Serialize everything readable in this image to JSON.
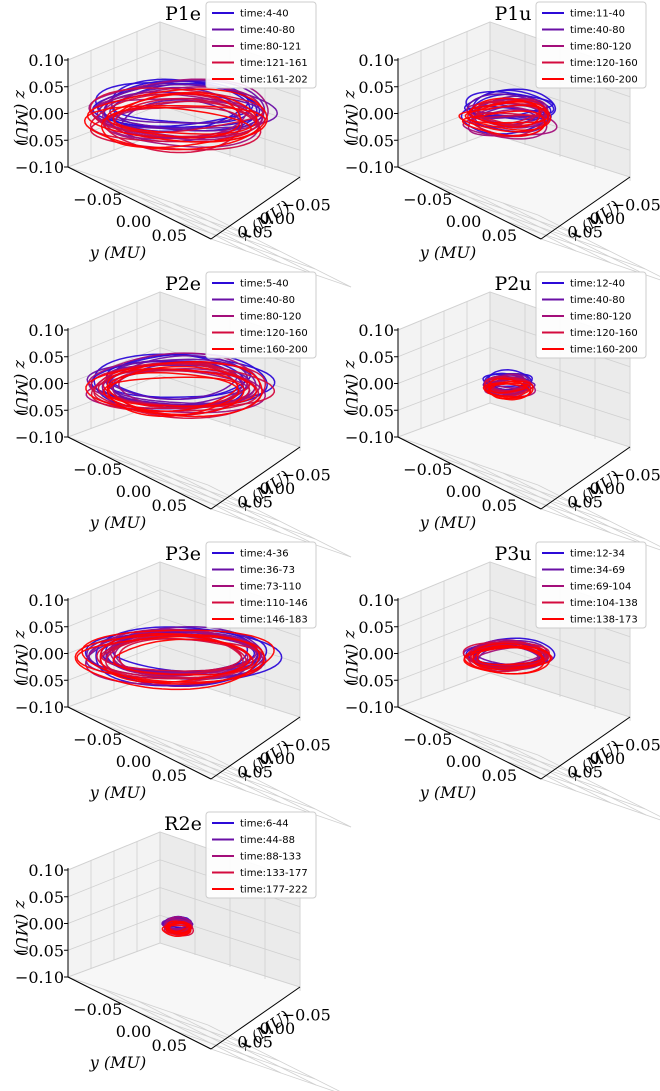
{
  "colors": [
    "#2c0ad8",
    "#6a0fa6",
    "#a30e7a",
    "#d40b3e",
    "#ff0000"
  ],
  "panel_labels": {
    "zlabel": "z (MU)",
    "ylabel": "y (MU)",
    "xlabel": "x (MU)",
    "zticks": [
      "0.10",
      "0.05",
      "0.00",
      "−0.05",
      "−0.10"
    ],
    "yticks": [
      "−0.05",
      "0.00",
      "0.05"
    ],
    "xticks": [
      "−0.05",
      "0.00",
      "0.05"
    ]
  },
  "chart_data": [
    {
      "type": "line3d",
      "title": "P1e",
      "xlim": [
        -0.1,
        0.1
      ],
      "ylim": [
        -0.1,
        0.1
      ],
      "zlim": [
        -0.1,
        0.1
      ],
      "orbit_radius": 0.06,
      "orbit_vspread": 0.012,
      "series": [
        {
          "name": "time:4-40"
        },
        {
          "name": "time:40-80"
        },
        {
          "name": "time:80-121"
        },
        {
          "name": "time:121-161"
        },
        {
          "name": "time:161-202"
        }
      ]
    },
    {
      "type": "line3d",
      "title": "P1u",
      "xlim": [
        -0.1,
        0.1
      ],
      "ylim": [
        -0.1,
        0.1
      ],
      "zlim": [
        -0.1,
        0.1
      ],
      "orbit_radius": 0.03,
      "orbit_vspread": 0.012,
      "series": [
        {
          "name": "time:11-40"
        },
        {
          "name": "time:40-80"
        },
        {
          "name": "time:80-120"
        },
        {
          "name": "time:120-160"
        },
        {
          "name": "time:160-200"
        }
      ]
    },
    {
      "type": "line3d",
      "title": "P2e",
      "xlim": [
        -0.1,
        0.1
      ],
      "ylim": [
        -0.1,
        0.1
      ],
      "zlim": [
        -0.1,
        0.1
      ],
      "orbit_radius": 0.06,
      "orbit_vspread": 0.008,
      "series": [
        {
          "name": "time:5-40"
        },
        {
          "name": "time:40-80"
        },
        {
          "name": "time:80-120"
        },
        {
          "name": "time:120-160"
        },
        {
          "name": "time:160-200"
        }
      ]
    },
    {
      "type": "line3d",
      "title": "P2u",
      "xlim": [
        -0.1,
        0.1
      ],
      "ylim": [
        -0.1,
        0.1
      ],
      "zlim": [
        -0.1,
        0.1
      ],
      "orbit_radius": 0.017,
      "orbit_vspread": 0.006,
      "series": [
        {
          "name": "time:12-40"
        },
        {
          "name": "time:40-80"
        },
        {
          "name": "time:80-120"
        },
        {
          "name": "time:120-160"
        },
        {
          "name": "time:160-200"
        }
      ]
    },
    {
      "type": "line3d",
      "title": "P3e",
      "xlim": [
        -0.1,
        0.1
      ],
      "ylim": [
        -0.1,
        0.1
      ],
      "zlim": [
        -0.1,
        0.1
      ],
      "orbit_radius": 0.065,
      "orbit_vspread": 0.004,
      "series": [
        {
          "name": "time:4-36"
        },
        {
          "name": "time:36-73"
        },
        {
          "name": "time:73-110"
        },
        {
          "name": "time:110-146"
        },
        {
          "name": "time:146-183"
        }
      ]
    },
    {
      "type": "line3d",
      "title": "P3u",
      "xlim": [
        -0.1,
        0.1
      ],
      "ylim": [
        -0.1,
        0.1
      ],
      "zlim": [
        -0.1,
        0.1
      ],
      "orbit_radius": 0.03,
      "orbit_vspread": 0.004,
      "series": [
        {
          "name": "time:12-34"
        },
        {
          "name": "time:34-69"
        },
        {
          "name": "time:69-104"
        },
        {
          "name": "time:104-138"
        },
        {
          "name": "time:138-173"
        }
      ]
    },
    {
      "type": "line3d",
      "title": "R2e",
      "xlim": [
        -0.1,
        0.1
      ],
      "ylim": [
        -0.1,
        0.1
      ],
      "zlim": [
        -0.1,
        0.1
      ],
      "orbit_radius": 0.01,
      "orbit_vspread": 0.004,
      "series": [
        {
          "name": "time:6-44"
        },
        {
          "name": "time:44-88"
        },
        {
          "name": "time:88-133"
        },
        {
          "name": "time:133-177"
        },
        {
          "name": "time:177-222"
        }
      ]
    }
  ]
}
